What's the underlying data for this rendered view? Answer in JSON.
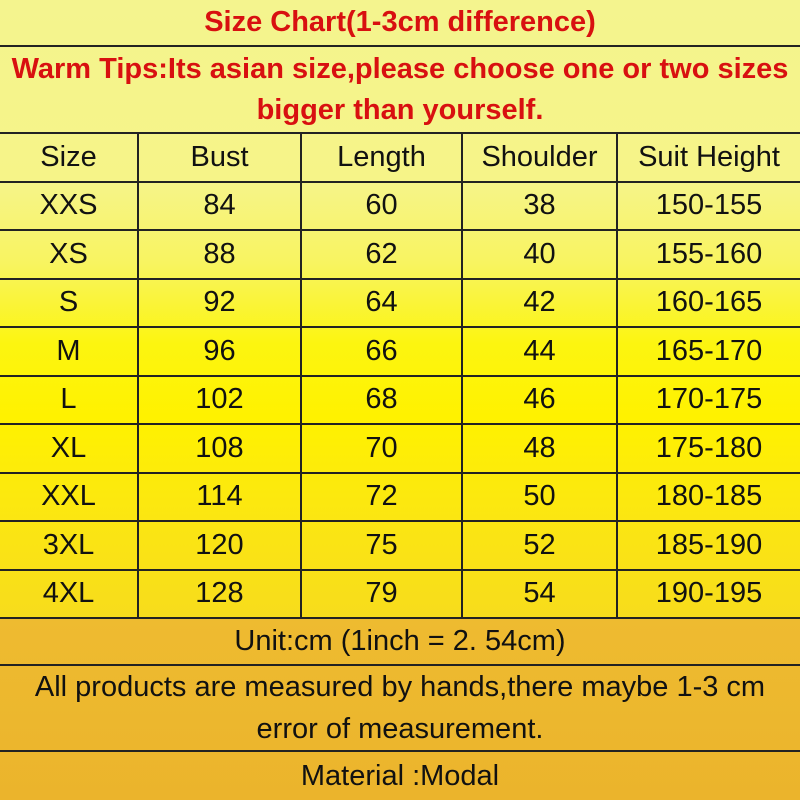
{
  "title": "Size Chart(1-3cm difference)",
  "warm_tips": "Warm Tips:Its asian size,please choose one or two sizes bigger than yourself.",
  "table": {
    "headers": [
      "Size",
      "Bust",
      "Length",
      "Shoulder",
      "Suit Height"
    ],
    "rows": [
      [
        "XXS",
        "84",
        "60",
        "38",
        "150-155"
      ],
      [
        "XS",
        "88",
        "62",
        "40",
        "155-160"
      ],
      [
        "S",
        "92",
        "64",
        "42",
        "160-165"
      ],
      [
        "M",
        "96",
        "66",
        "44",
        "165-170"
      ],
      [
        "L",
        "102",
        "68",
        "46",
        "170-175"
      ],
      [
        "XL",
        "108",
        "70",
        "48",
        "175-180"
      ],
      [
        "XXL",
        "114",
        "72",
        "50",
        "180-185"
      ],
      [
        "3XL",
        "120",
        "75",
        "52",
        "185-190"
      ],
      [
        "4XL",
        "128",
        "79",
        "54",
        "190-195"
      ]
    ]
  },
  "unit_note": "Unit:cm (1inch = 2. 54cm)",
  "measure_note": "All products are measured by hands,there maybe 1-3 cm error of measurement.",
  "material": "Material :Modal",
  "colors": {
    "title_text": "#d81010",
    "body_text": "#111111",
    "top_bg": "#f4f48e",
    "mid_bg": "#fff200",
    "footer_bg": "#ebb42c"
  }
}
